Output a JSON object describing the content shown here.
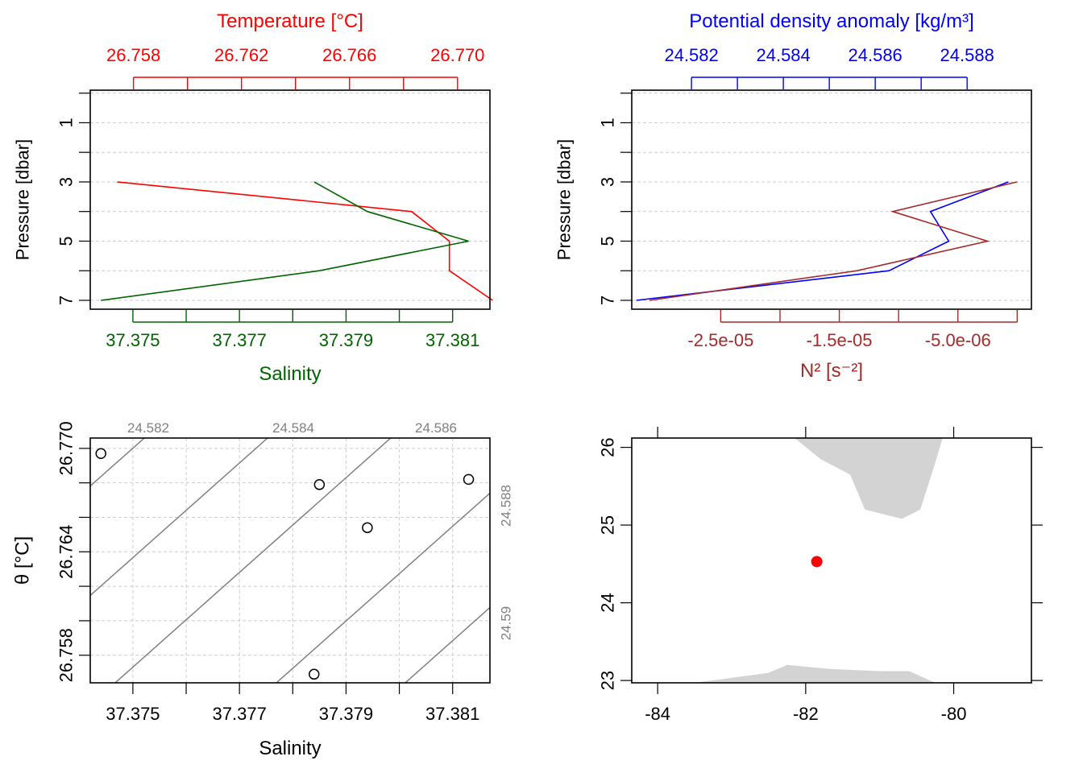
{
  "colors": {
    "temperature": "#ff0000",
    "salinity": "#006400",
    "density": "#0000ff",
    "n2": "#a52a2a",
    "isopycnal": "#808080",
    "land": "#d3d3d3",
    "station": "#ff0000"
  },
  "chart_data": [
    {
      "type": "line",
      "panel": "top-left",
      "top_axis_title": "Temperature [°C]",
      "bottom_axis_title": "Salinity",
      "ylabel": "Pressure [dbar]",
      "ylim": [
        7.3,
        -0.1
      ],
      "y_ticks": [
        1,
        3,
        5,
        7
      ],
      "y_minor_ticks": [
        0,
        2,
        4,
        6
      ],
      "grid": true,
      "temperature_axis": {
        "range": [
          26.7564,
          26.7712
        ],
        "ticks": [
          26.758,
          26.76,
          26.762,
          26.764,
          26.766,
          26.768,
          26.77
        ],
        "tick_labels": [
          "26.758",
          "",
          "26.762",
          "",
          "26.766",
          "",
          "26.770"
        ]
      },
      "salinity_axis": {
        "range": [
          37.3742,
          37.3817
        ],
        "ticks": [
          37.375,
          37.376,
          37.377,
          37.378,
          37.379,
          37.38,
          37.381
        ],
        "tick_labels": [
          "37.375",
          "",
          "37.377",
          "",
          "37.379",
          "",
          "37.381"
        ]
      },
      "series": [
        {
          "name": "Temperature",
          "x": [
            26.7574,
            26.7683,
            26.7697,
            26.7697,
            26.7713
          ],
          "y": [
            3,
            4,
            5,
            6,
            7
          ]
        },
        {
          "name": "Salinity",
          "x": [
            37.3784,
            37.3794,
            37.3813,
            37.3785,
            37.3744
          ],
          "y": [
            3,
            4,
            5,
            6,
            7
          ]
        }
      ]
    },
    {
      "type": "line",
      "panel": "top-right",
      "top_axis_title": "Potential density anomaly [kg/m³]",
      "bottom_axis_title": "N² [s⁻²]",
      "ylabel": "Pressure [dbar]",
      "ylim": [
        7.3,
        -0.1
      ],
      "y_ticks": [
        1,
        3,
        5,
        7
      ],
      "y_minor_ticks": [
        0,
        2,
        4,
        6
      ],
      "grid": true,
      "density_axis": {
        "range": [
          24.5807,
          24.5894
        ],
        "ticks": [
          24.582,
          24.583,
          24.584,
          24.585,
          24.586,
          24.587,
          24.588
        ],
        "tick_labels": [
          "24.582",
          "",
          "24.584",
          "",
          "24.586",
          "",
          "24.588"
        ]
      },
      "n2_axis": {
        "range": [
          -3.25e-05,
          1.2e-06
        ],
        "ticks": [
          -2.5e-05,
          -2e-05,
          -1.5e-05,
          -1e-05,
          -5e-06,
          0
        ],
        "tick_labels": [
          "-2.5e-05",
          "",
          "-1.5e-05",
          "",
          "-5.0e-06",
          ""
        ]
      },
      "series": [
        {
          "name": "Potential density anomaly",
          "x": [
            24.5889,
            24.5872,
            24.5876,
            24.5863,
            24.5808
          ],
          "y": [
            3,
            4,
            5,
            6,
            7
          ]
        },
        {
          "name": "N²",
          "x": [
            0,
            -1.05e-05,
            -2.5e-06,
            -1.35e-05,
            -3.1e-05
          ],
          "y": [
            3,
            4,
            5,
            6,
            7
          ]
        }
      ]
    },
    {
      "type": "scatter",
      "panel": "bottom-left",
      "xlabel": "Salinity",
      "ylabel": "θ [°C]",
      "xlim": [
        37.3742,
        37.3817
      ],
      "ylim": [
        26.7564,
        26.7706
      ],
      "x_ticks": [
        37.375,
        37.376,
        37.377,
        37.378,
        37.379,
        37.38,
        37.381
      ],
      "x_tick_labels": [
        "37.375",
        "",
        "37.377",
        "",
        "37.379",
        "",
        "37.381"
      ],
      "y_ticks": [
        26.758,
        26.76,
        26.762,
        26.764,
        26.766,
        26.768,
        26.77
      ],
      "y_tick_labels": [
        "26.758",
        "",
        "",
        "26.764",
        "",
        "",
        "26.770"
      ],
      "grid": true,
      "points": [
        {
          "x": 37.3744,
          "y": 26.7697
        },
        {
          "x": 37.3785,
          "y": 26.7679
        },
        {
          "x": 37.3794,
          "y": 26.7654
        },
        {
          "x": 37.3813,
          "y": 26.7682
        },
        {
          "x": 37.3784,
          "y": 26.7569
        }
      ],
      "isopycnals": [
        {
          "label": "24.582",
          "label_side": "top"
        },
        {
          "label": "24.584",
          "label_side": "top"
        },
        {
          "label": "24.586",
          "label_side": "top"
        },
        {
          "label": "24.588",
          "label_side": "right"
        },
        {
          "label": "24.59",
          "label_side": "right"
        }
      ]
    },
    {
      "type": "scatter",
      "panel": "bottom-right",
      "xlim": [
        -84.35,
        -78.95
      ],
      "ylim": [
        22.97,
        26.12
      ],
      "x_ticks": [
        -84,
        -82,
        -80
      ],
      "x_tick_labels": [
        "-84",
        "-82",
        "-80"
      ],
      "y_ticks": [
        23,
        24,
        25,
        26
      ],
      "y_tick_labels": [
        "23",
        "24",
        "25",
        "26"
      ],
      "station": {
        "lon": -81.85,
        "lat": 24.53
      },
      "land": [
        [
          [
            -82.15,
            26.12
          ],
          [
            -81.8,
            25.85
          ],
          [
            -81.4,
            25.65
          ],
          [
            -81.2,
            25.2
          ],
          [
            -80.7,
            25.08
          ],
          [
            -80.45,
            25.2
          ],
          [
            -80.25,
            25.8
          ],
          [
            -80.15,
            26.12
          ]
        ],
        [
          [
            -83.5,
            22.97
          ],
          [
            -82.5,
            23.1
          ],
          [
            -82.25,
            23.2
          ],
          [
            -81.7,
            23.15
          ],
          [
            -81.0,
            23.12
          ],
          [
            -80.6,
            23.12
          ],
          [
            -80.25,
            22.97
          ]
        ]
      ]
    }
  ]
}
